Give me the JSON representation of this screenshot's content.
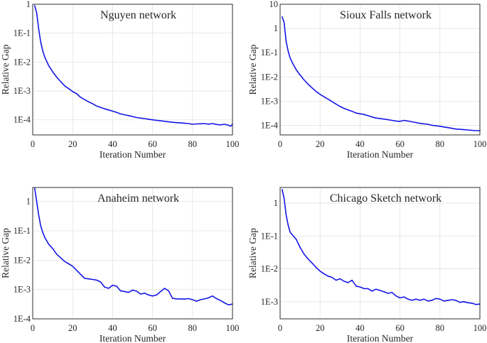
{
  "chart_data": [
    {
      "type": "line",
      "title": "Nguyen network",
      "xlabel": "Iteration Number",
      "ylabel": "Relative Gap",
      "xlim": [
        0,
        100
      ],
      "ylim": [
        3e-05,
        1
      ],
      "yscale": "log",
      "grid": true,
      "xticks": [
        0,
        20,
        40,
        60,
        80,
        100
      ],
      "xtick_labels": [
        "0",
        "20",
        "40",
        "60",
        "80",
        "100"
      ],
      "yticks": [
        0.0001,
        0.001,
        0.01,
        0.1,
        1
      ],
      "ytick_labels": [
        "1E-4",
        "1E-3",
        "1E-2",
        "1E-1",
        "1"
      ],
      "colors": {
        "line": "#1515e6"
      },
      "series": [
        {
          "x": [
            1,
            2,
            3,
            4,
            5,
            6,
            8,
            10,
            12,
            14,
            16,
            18,
            20,
            22,
            24,
            26,
            28,
            30,
            32,
            34,
            36,
            38,
            40,
            42,
            44,
            46,
            48,
            50,
            52,
            54,
            56,
            58,
            60,
            62,
            64,
            66,
            68,
            70,
            72,
            74,
            76,
            78,
            80,
            82,
            84,
            86,
            88,
            90,
            92,
            94,
            96,
            98,
            99,
            100
          ],
          "y": [
            0.9,
            0.5,
            0.14,
            0.05,
            0.025,
            0.015,
            0.0075,
            0.0046,
            0.003,
            0.0021,
            0.0015,
            0.0012,
            0.00095,
            0.0008,
            0.0006,
            0.0005,
            0.00042,
            0.00036,
            0.0003,
            0.00027,
            0.00024,
            0.00022,
            0.0002,
            0.00018,
            0.00016,
            0.00015,
            0.00014,
            0.00013,
            0.00012,
            0.000115,
            0.00011,
            0.000105,
            0.0001,
            9.62e-05,
            9.25e-05,
            8.9e-05,
            8.5e-05,
            8.2e-05,
            8e-05,
            7.8e-05,
            7.6e-05,
            7.4e-05,
            7e-05,
            7.2e-05,
            7.3e-05,
            7.4e-05,
            7.1e-05,
            7.4e-05,
            6.9e-05,
            6.7e-05,
            7e-05,
            6.5e-05,
            6e-05,
            7e-05
          ]
        }
      ]
    },
    {
      "type": "line",
      "title": "Sioux Falls network",
      "xlabel": "Iteration Number",
      "ylabel": "Relative Gap",
      "xlim": [
        0,
        100
      ],
      "ylim": [
        4e-05,
        10
      ],
      "yscale": "log",
      "grid": true,
      "xticks": [
        0,
        20,
        40,
        60,
        80,
        100
      ],
      "xtick_labels": [
        "0",
        "20",
        "40",
        "60",
        "80",
        "100"
      ],
      "yticks": [
        0.0001,
        0.001,
        0.01,
        0.1,
        1,
        10
      ],
      "ytick_labels": [
        "1E-4",
        "1E-3",
        "1E-2",
        "1E-1",
        "1",
        "10"
      ],
      "colors": {
        "line": "#1515e6"
      },
      "series": [
        {
          "x": [
            1,
            2,
            3,
            4,
            5,
            6,
            8,
            10,
            12,
            14,
            16,
            18,
            20,
            22,
            24,
            26,
            28,
            30,
            32,
            34,
            36,
            38,
            40,
            42,
            44,
            46,
            48,
            50,
            52,
            54,
            56,
            58,
            60,
            62,
            64,
            66,
            68,
            70,
            72,
            74,
            76,
            78,
            80,
            82,
            84,
            86,
            88,
            90,
            92,
            94,
            96,
            98,
            100
          ],
          "y": [
            3.0,
            1.8,
            0.3,
            0.12,
            0.06,
            0.04,
            0.02,
            0.012,
            0.0075,
            0.005,
            0.0035,
            0.0025,
            0.0019,
            0.0015,
            0.0012,
            0.00095,
            0.00075,
            0.0006,
            0.0005,
            0.00043,
            0.00038,
            0.00032,
            0.0003,
            0.00028,
            0.00025,
            0.00022,
            0.0002,
            0.00019,
            0.00018,
            0.00017,
            0.00016,
            0.00015,
            0.000145,
            0.00016,
            0.00015,
            0.00014,
            0.00013,
            0.00012,
            0.000115,
            0.00011,
            0.0001,
            9.55e-05,
            9.12e-05,
            8.5e-05,
            8e-05,
            7.5e-05,
            7e-05,
            6.8e-05,
            6.6e-05,
            6.4e-05,
            6.2e-05,
            6e-05,
            6e-05
          ]
        }
      ]
    },
    {
      "type": "line",
      "title": "Anaheim network",
      "xlabel": "Iteration Number",
      "ylabel": "Relative Gap",
      "xlim": [
        0,
        100
      ],
      "ylim": [
        0.0001,
        3
      ],
      "yscale": "log",
      "grid": true,
      "xticks": [
        0,
        20,
        40,
        60,
        80,
        100
      ],
      "xtick_labels": [
        "0",
        "20",
        "40",
        "60",
        "80",
        "100"
      ],
      "yticks": [
        0.0001,
        0.001,
        0.01,
        0.1,
        1
      ],
      "ytick_labels": [
        "1E-4",
        "1E-3",
        "1E-2",
        "1E-1",
        "1"
      ],
      "colors": {
        "line": "#1515e6"
      },
      "series": [
        {
          "x": [
            1,
            2,
            3,
            4,
            5,
            6,
            8,
            10,
            12,
            14,
            16,
            18,
            20,
            22,
            24,
            26,
            28,
            30,
            32,
            34,
            36,
            38,
            40,
            42,
            44,
            46,
            48,
            50,
            52,
            54,
            56,
            58,
            60,
            62,
            64,
            66,
            68,
            70,
            72,
            74,
            76,
            78,
            80,
            82,
            84,
            86,
            88,
            90,
            92,
            94,
            96,
            98,
            100
          ],
          "y": [
            2.8,
            1.0,
            0.35,
            0.15,
            0.09,
            0.06,
            0.035,
            0.025,
            0.016,
            0.012,
            0.009,
            0.0075,
            0.0062,
            0.0045,
            0.0033,
            0.0024,
            0.0023,
            0.0022,
            0.0021,
            0.0018,
            0.0012,
            0.0011,
            0.0014,
            0.0013,
            0.0009,
            0.00085,
            0.0008,
            0.00095,
            0.00088,
            0.0007,
            0.00075,
            0.00065,
            0.0006,
            0.00065,
            0.00085,
            0.0011,
            0.0009,
            0.0005,
            0.00048,
            0.00048,
            0.00047,
            0.00049,
            0.00045,
            0.0004,
            0.00045,
            0.00048,
            0.00052,
            0.0006,
            0.00049,
            0.00042,
            0.00035,
            0.0003,
            0.00032
          ]
        }
      ]
    },
    {
      "type": "line",
      "title": "Chicago Sketch network",
      "xlabel": "Iteration Number",
      "ylabel": "Relative Gap",
      "xlim": [
        0,
        100
      ],
      "ylim": [
        0.0003,
        3
      ],
      "yscale": "log",
      "grid": true,
      "xticks": [
        0,
        20,
        40,
        60,
        80,
        100
      ],
      "xtick_labels": [
        "0",
        "20",
        "40",
        "60",
        "80",
        "100"
      ],
      "yticks": [
        0.001,
        0.01,
        0.1,
        1
      ],
      "ytick_labels": [
        "1E-3",
        "1E-2",
        "1E-1",
        "1"
      ],
      "colors": {
        "line": "#1515e6"
      },
      "series": [
        {
          "x": [
            1,
            2,
            3,
            4,
            5,
            6,
            8,
            10,
            12,
            14,
            16,
            18,
            20,
            22,
            24,
            26,
            28,
            30,
            32,
            34,
            36,
            38,
            40,
            42,
            44,
            46,
            48,
            50,
            52,
            54,
            56,
            58,
            60,
            62,
            64,
            66,
            68,
            70,
            72,
            74,
            76,
            78,
            80,
            82,
            84,
            86,
            88,
            90,
            92,
            94,
            96,
            98,
            100
          ],
          "y": [
            2.6,
            1.4,
            0.45,
            0.22,
            0.13,
            0.11,
            0.08,
            0.045,
            0.028,
            0.02,
            0.015,
            0.011,
            0.0085,
            0.007,
            0.006,
            0.0055,
            0.0045,
            0.005,
            0.0042,
            0.0038,
            0.0045,
            0.003,
            0.0028,
            0.0025,
            0.0025,
            0.0021,
            0.0024,
            0.0022,
            0.002,
            0.0018,
            0.0019,
            0.0015,
            0.0013,
            0.0014,
            0.0012,
            0.0011,
            0.0012,
            0.0011,
            0.0012,
            0.00105,
            0.0011,
            0.00125,
            0.0012,
            0.00105,
            0.0011,
            0.00115,
            0.0011,
            0.00095,
            0.001,
            0.00093,
            0.0009,
            0.00082,
            0.00085
          ]
        }
      ]
    }
  ]
}
